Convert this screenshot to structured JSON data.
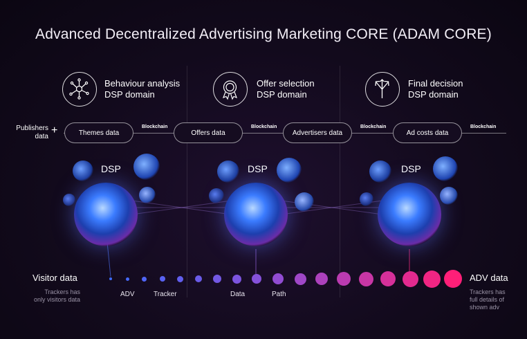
{
  "title": "Advanced Decentralized Advertising Marketing CORE (ADAM CORE)",
  "stages": [
    {
      "title": "Behaviour analysis",
      "domain": "DSP domain",
      "icon": "network-nodes-icon"
    },
    {
      "title": "Offer selection",
      "domain": "DSP domain",
      "icon": "award-badge-icon"
    },
    {
      "title": "Final decision",
      "domain": "DSP domain",
      "icon": "split-arrows-icon"
    }
  ],
  "flow": {
    "publishers_line1": "Publishers",
    "publishers_line2": "data",
    "plus": "+",
    "pills": [
      "Themes data",
      "Offers data",
      "Advertisers data",
      "Ad costs data"
    ],
    "blockchain": "Blockchain"
  },
  "dsp_label": "DSP",
  "timeline": {
    "visitor_title": "Visitor data",
    "visitor_note_line1": "Trackers has",
    "visitor_note_line2": "only visitors data",
    "adv_title": "ADV data",
    "adv_note_line1": "Trackers has",
    "adv_note_line2": "full details of",
    "adv_note_line3": "shown adv",
    "labels": [
      "ADV",
      "Tracker",
      "Data",
      "Path"
    ]
  },
  "colors": {
    "dot_start": "#3d6cff",
    "dot_mid": "#8a4fd8",
    "dot_end": "#ff1f78"
  }
}
